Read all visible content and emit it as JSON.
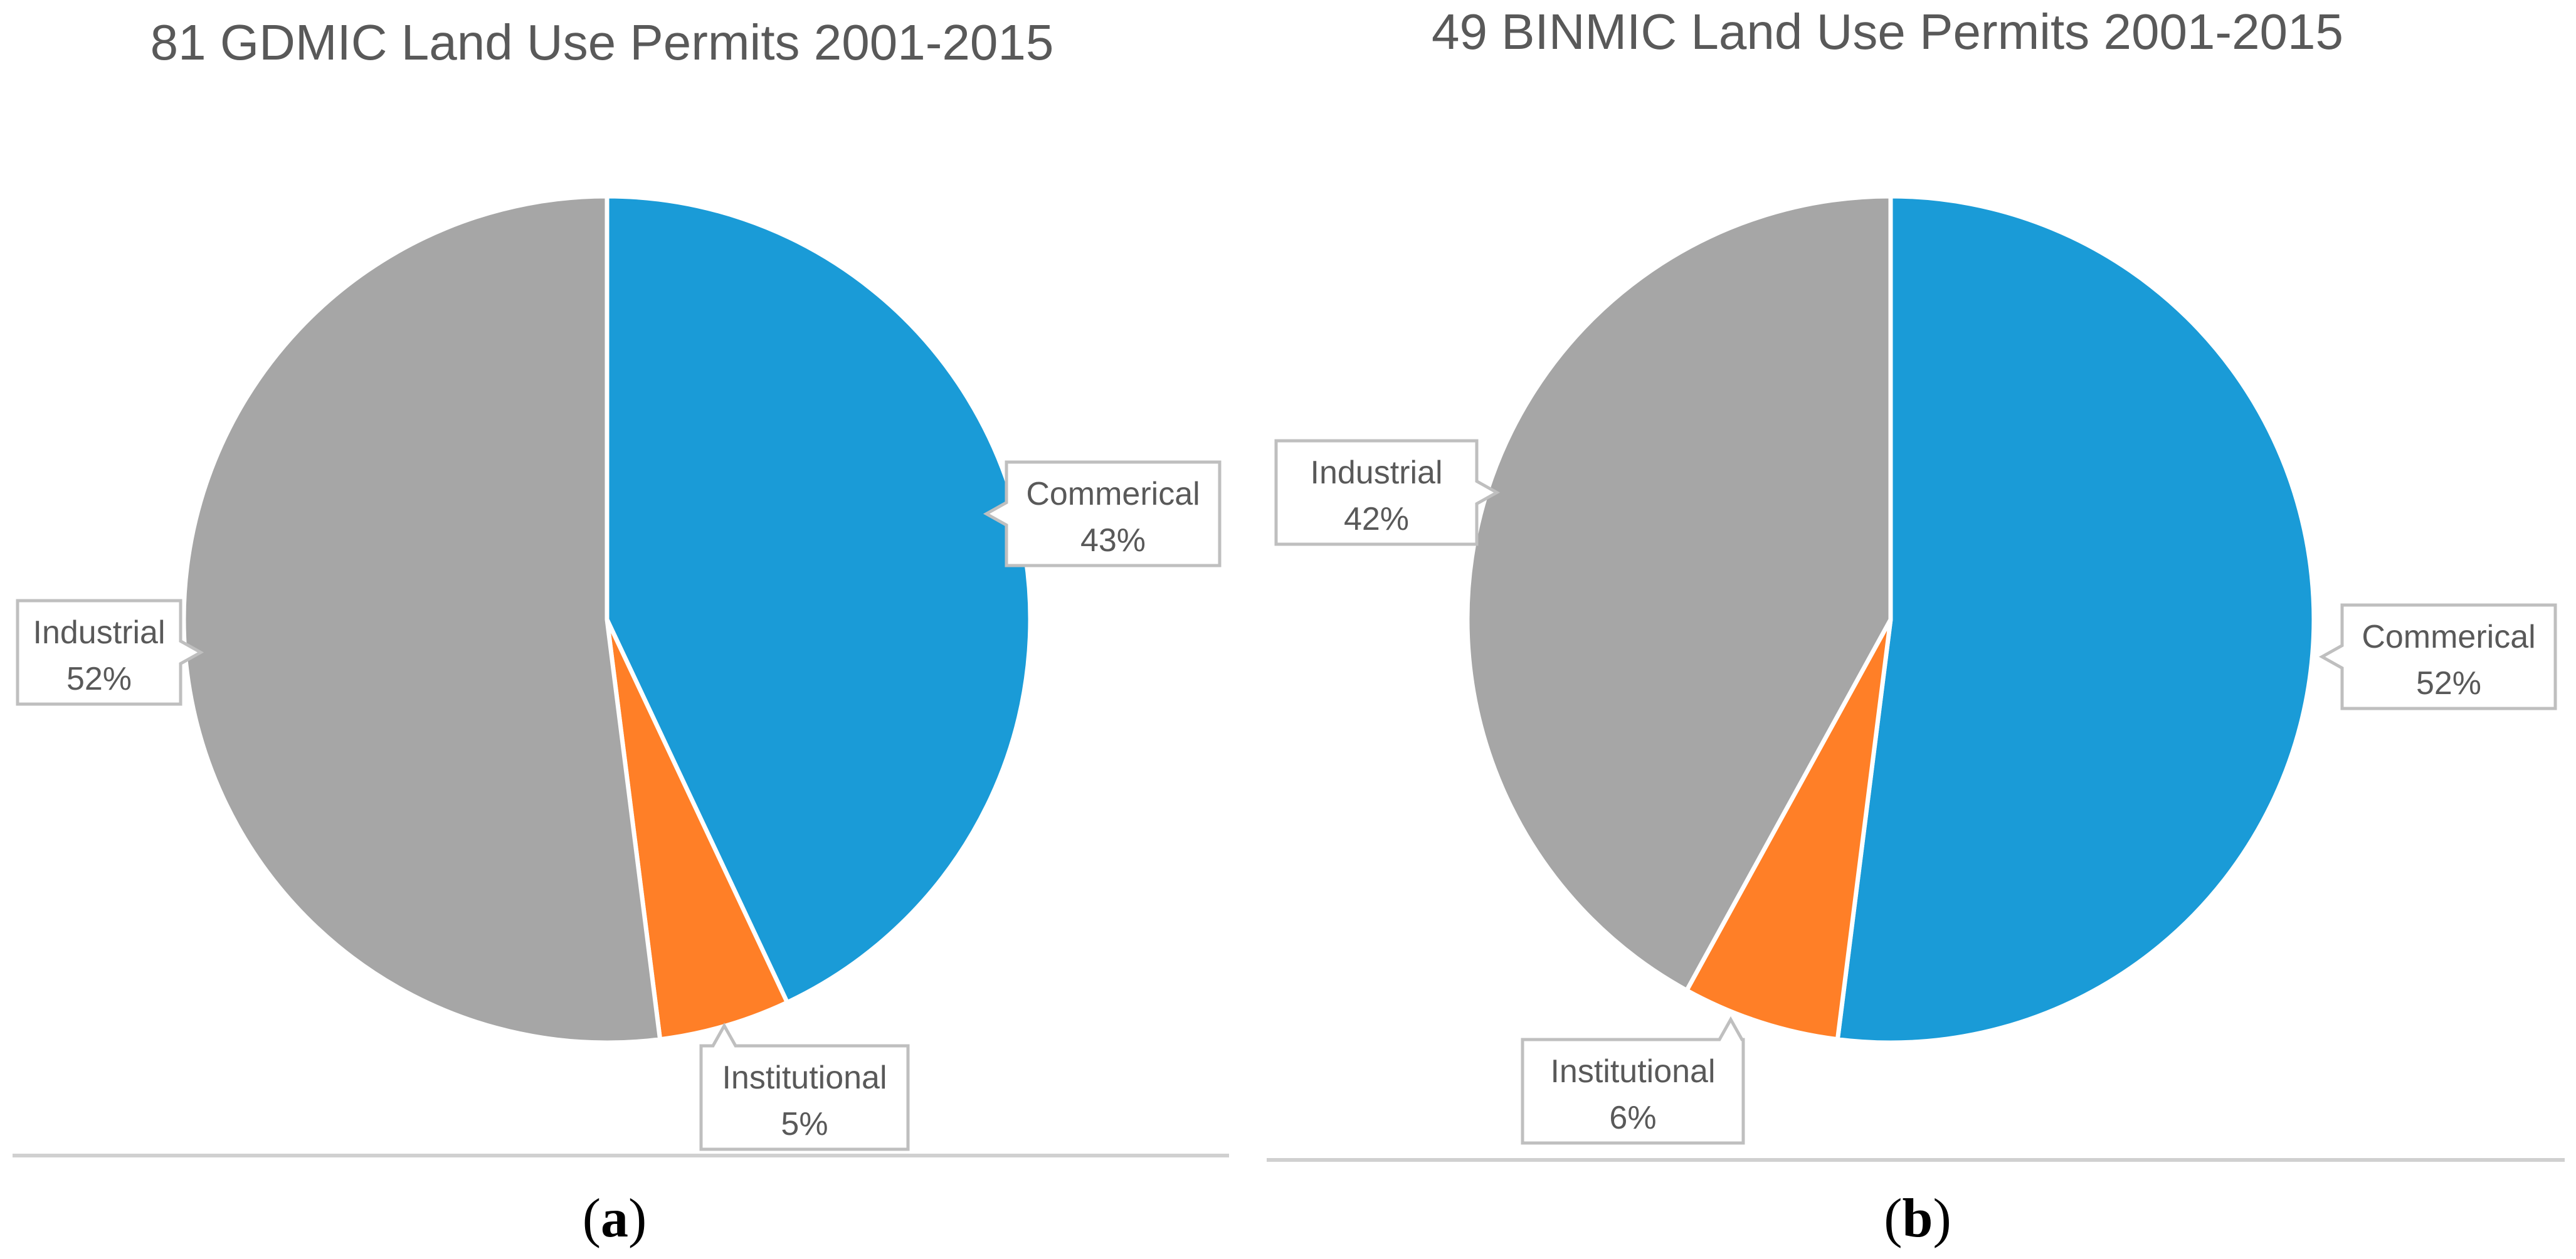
{
  "chart_data": [
    {
      "type": "pie",
      "panel_label": "a",
      "title": "81 GDMIC Land Use Permits 2001-2015",
      "slices": [
        {
          "label": "Commerical",
          "value": 43,
          "value_label": "43%",
          "color": "#1A9BD7"
        },
        {
          "label": "Institutional",
          "value": 5,
          "value_label": "5%",
          "color": "#FF7F27"
        },
        {
          "label": "Industrial",
          "value": 52,
          "value_label": "52%",
          "color": "#A6A6A6"
        }
      ]
    },
    {
      "type": "pie",
      "panel_label": "b",
      "title": "49 BINMIC Land Use Permits 2001-2015",
      "slices": [
        {
          "label": "Commerical",
          "value": 52,
          "value_label": "52%",
          "color": "#1A9BD7"
        },
        {
          "label": "Institutional",
          "value": 6,
          "value_label": "6%",
          "color": "#FF7F27"
        },
        {
          "label": "Industrial",
          "value": 42,
          "value_label": "42%",
          "color": "#A6A6A6"
        }
      ]
    }
  ]
}
